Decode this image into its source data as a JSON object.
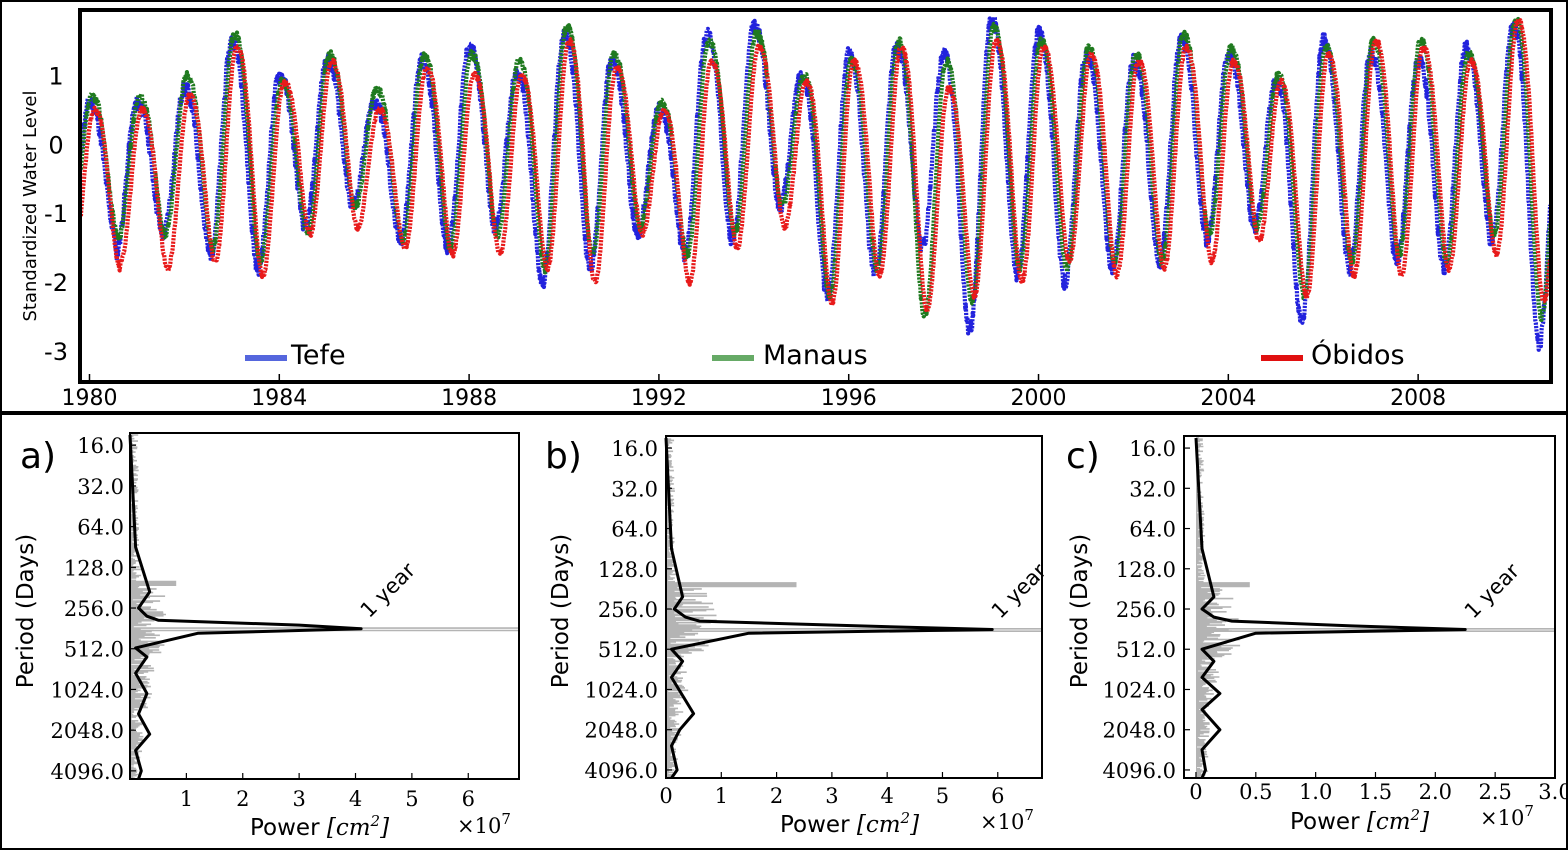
{
  "chart_data": [
    {
      "id": "timeseries",
      "type": "line",
      "ylabel": "Standardized Water Level",
      "xlim": [
        1979.8,
        2010.8
      ],
      "ylim": [
        -3.45,
        1.95
      ],
      "xticks": [
        "1980",
        "1984",
        "1988",
        "1992",
        "1996",
        "2000",
        "2004",
        "2008"
      ],
      "xtick_values": [
        1980,
        1984,
        1988,
        1992,
        1996,
        2000,
        2004,
        2008
      ],
      "yticks": [
        "1",
        "0",
        "-1",
        "-2",
        "-3"
      ],
      "ytick_values": [
        1,
        0,
        -1,
        -2,
        -3
      ],
      "legend": [
        "Tefe",
        "Manaus",
        "Óbidos"
      ],
      "annual_peaks": {
        "years": [
          1980,
          1981,
          1982,
          1983,
          1984,
          1985,
          1986,
          1987,
          1988,
          1989,
          1990,
          1991,
          1992,
          1993,
          1994,
          1995,
          1996,
          1997,
          1998,
          1999,
          2000,
          2001,
          2002,
          2003,
          2004,
          2005,
          2006,
          2007,
          2008,
          2009,
          2010
        ],
        "Tefe": [
          0.6,
          0.8,
          1.5,
          1.0,
          1.2,
          0.6,
          1.2,
          1.4,
          1.0,
          1.6,
          1.2,
          0.5,
          1.6,
          1.7,
          1.0,
          1.3,
          1.4,
          1.3,
          1.8,
          1.6,
          1.3,
          1.2,
          1.5,
          1.3,
          0.9,
          1.5,
          1.3,
          1.2,
          1.4,
          1.7,
          1.1
        ],
        "Manaus": [
          0.7,
          1.0,
          1.6,
          0.9,
          1.3,
          0.8,
          1.3,
          1.3,
          1.2,
          1.7,
          1.3,
          0.6,
          1.5,
          1.6,
          1.0,
          1.2,
          1.5,
          1.2,
          1.7,
          1.5,
          1.4,
          1.3,
          1.6,
          1.4,
          1.0,
          1.4,
          1.5,
          1.5,
          1.3,
          1.8,
          1.3
        ],
        "Obidos": [
          0.5,
          0.7,
          1.4,
          0.9,
          1.2,
          0.5,
          1.1,
          1.0,
          1.0,
          1.5,
          1.1,
          0.5,
          1.2,
          1.4,
          0.9,
          1.2,
          1.4,
          0.8,
          1.5,
          1.4,
          1.3,
          1.2,
          1.4,
          1.2,
          0.9,
          1.3,
          1.5,
          1.4,
          1.2,
          1.8,
          1.2
        ]
      },
      "annual_troughs": {
        "Tefe": [
          -1.6,
          -1.3,
          -1.6,
          -1.8,
          -1.2,
          -0.9,
          -1.4,
          -1.5,
          -1.2,
          -2.0,
          -1.8,
          -1.3,
          -1.6,
          -1.4,
          -0.9,
          -2.2,
          -1.9,
          -1.5,
          -2.7,
          -1.9,
          -2.0,
          -1.8,
          -1.7,
          -1.4,
          -1.2,
          -2.6,
          -1.8,
          -1.7,
          -1.8,
          -1.4,
          -2.9
        ],
        "Manaus": [
          -1.4,
          -1.3,
          -1.5,
          -1.7,
          -1.3,
          -0.9,
          -1.4,
          -1.5,
          -1.3,
          -1.8,
          -1.6,
          -1.2,
          -1.6,
          -1.3,
          -0.9,
          -2.2,
          -1.8,
          -2.5,
          -2.3,
          -1.8,
          -1.8,
          -1.7,
          -1.7,
          -1.3,
          -1.2,
          -2.2,
          -1.7,
          -1.6,
          -1.7,
          -1.3,
          -2.5
        ],
        "Obidos": [
          -1.7,
          -1.8,
          -1.7,
          -1.9,
          -1.3,
          -1.2,
          -1.5,
          -1.6,
          -1.6,
          -1.8,
          -2.0,
          -1.3,
          -2.0,
          -1.5,
          -1.2,
          -2.3,
          -1.9,
          -2.4,
          -2.2,
          -2.0,
          -1.7,
          -1.9,
          -1.8,
          -1.7,
          -1.4,
          -2.2,
          -1.9,
          -1.9,
          -1.8,
          -1.6,
          -2.3
        ]
      }
    },
    {
      "id": "periodogram-a",
      "type": "line",
      "panel_label": "a)",
      "ylabel": "Period (Days)",
      "xlabel": "Power [cm²]",
      "xlabel_text": "Power",
      "xlabel_unit": "[cm",
      "xlabel_exp": "2",
      "xlabel_close": "]",
      "multiplier": "×10",
      "multiplier_exp": "7",
      "xlim": [
        0,
        6.9
      ],
      "ylim_log2": [
        3.7,
        12.2
      ],
      "xticks": [
        "1",
        "2",
        "3",
        "4",
        "5",
        "6"
      ],
      "xtick_values": [
        1,
        2,
        3,
        4,
        5,
        6
      ],
      "yticks": [
        "16.0",
        "32.0",
        "64.0",
        "128.0",
        "256.0",
        "512.0",
        "1024.0",
        "2048.0",
        "4096.0"
      ],
      "ytick_values": [
        16,
        32,
        64,
        128,
        256,
        512,
        1024,
        2048,
        4096
      ],
      "annotation": "1 year",
      "peak_period_days": 365,
      "peak_power": 4.1,
      "raw_max_power": 6.9,
      "smoothed_curve": [
        [
          0.0,
          3.75
        ],
        [
          0.1,
          6.5
        ],
        [
          0.35,
          7.6
        ],
        [
          0.15,
          8.0
        ],
        [
          0.3,
          8.2
        ],
        [
          0.5,
          8.3
        ],
        [
          3.0,
          8.42
        ],
        [
          4.1,
          8.51
        ],
        [
          1.2,
          8.62
        ],
        [
          0.1,
          8.98
        ],
        [
          0.3,
          9.2
        ],
        [
          0.1,
          9.6
        ],
        [
          0.3,
          10.1
        ],
        [
          0.15,
          10.6
        ],
        [
          0.35,
          11.1
        ],
        [
          0.1,
          11.5
        ],
        [
          0.2,
          12.0
        ],
        [
          0.15,
          12.2
        ]
      ]
    },
    {
      "id": "periodogram-b",
      "type": "line",
      "panel_label": "b)",
      "ylabel": "Period (Days)",
      "xlabel": "Power [cm²]",
      "xlabel_text": "Power",
      "xlabel_unit": "[cm",
      "xlabel_exp": "2",
      "xlabel_close": "]",
      "multiplier": "×10",
      "multiplier_exp": "7",
      "xlim": [
        0,
        6.8
      ],
      "ylim_log2": [
        3.7,
        12.2
      ],
      "xticks": [
        "0",
        "1",
        "2",
        "3",
        "4",
        "5",
        "6"
      ],
      "xtick_values": [
        0,
        1,
        2,
        3,
        4,
        5,
        6
      ],
      "yticks": [
        "16.0",
        "32.0",
        "64.0",
        "128.0",
        "256.0",
        "512.0",
        "1024.0",
        "2048.0",
        "4096.0"
      ],
      "ytick_values": [
        16,
        32,
        64,
        128,
        256,
        512,
        1024,
        2048,
        4096
      ],
      "annotation": "1 year",
      "peak_period_days": 365,
      "peak_power": 5.9,
      "raw_max_power": 6.8,
      "smoothed_curve": [
        [
          0.0,
          3.75
        ],
        [
          0.1,
          6.5
        ],
        [
          0.3,
          7.7
        ],
        [
          0.15,
          8.0
        ],
        [
          0.35,
          8.2
        ],
        [
          0.6,
          8.3
        ],
        [
          3.5,
          8.42
        ],
        [
          5.9,
          8.51
        ],
        [
          1.5,
          8.6
        ],
        [
          0.1,
          9.0
        ],
        [
          0.3,
          9.3
        ],
        [
          0.1,
          9.7
        ],
        [
          0.5,
          10.6
        ],
        [
          0.25,
          11.0
        ],
        [
          0.1,
          11.4
        ],
        [
          0.2,
          12.0
        ],
        [
          0.1,
          12.2
        ]
      ]
    },
    {
      "id": "periodogram-c",
      "type": "line",
      "panel_label": "c)",
      "ylabel": "Period (Days)",
      "xlabel": "Power [cm²]",
      "xlabel_text": "Power",
      "xlabel_unit": "[cm",
      "xlabel_exp": "2",
      "xlabel_close": "]",
      "multiplier": "×10",
      "multiplier_exp": "7",
      "xlim": [
        -0.1,
        3.0
      ],
      "ylim_log2": [
        3.7,
        12.2
      ],
      "xticks": [
        "0",
        "0.5",
        "1.0",
        "1.5",
        "2.0",
        "2.5",
        "3.0"
      ],
      "xtick_values": [
        0,
        0.5,
        1.0,
        1.5,
        2.0,
        2.5,
        3.0
      ],
      "yticks": [
        "16.0",
        "32.0",
        "64.0",
        "128.0",
        "256.0",
        "512.0",
        "1024.0",
        "2048.0",
        "4096.0"
      ],
      "ytick_values": [
        16,
        32,
        64,
        128,
        256,
        512,
        1024,
        2048,
        4096
      ],
      "annotation": "1 year",
      "peak_period_days": 365,
      "peak_power": 2.25,
      "raw_max_power": 3.0,
      "smoothed_curve": [
        [
          0.0,
          3.75
        ],
        [
          0.05,
          6.5
        ],
        [
          0.15,
          7.7
        ],
        [
          0.05,
          8.0
        ],
        [
          0.15,
          8.2
        ],
        [
          0.3,
          8.3
        ],
        [
          1.3,
          8.42
        ],
        [
          2.25,
          8.51
        ],
        [
          0.5,
          8.6
        ],
        [
          0.05,
          9.0
        ],
        [
          0.15,
          9.3
        ],
        [
          0.05,
          9.7
        ],
        [
          0.2,
          10.1
        ],
        [
          0.05,
          10.5
        ],
        [
          0.2,
          11.0
        ],
        [
          0.05,
          11.5
        ],
        [
          0.08,
          12.0
        ],
        [
          0.05,
          12.2
        ]
      ]
    }
  ],
  "colors": {
    "tefe": "#2222dd",
    "manaus": "#1f7a1f",
    "obidos": "#e81a1a",
    "tefe_legend": "#5566dd",
    "manaus_legend": "#66aa66",
    "obidos_legend": "#e01010",
    "raw": "#b4b4b4",
    "smooth": "#000000"
  }
}
